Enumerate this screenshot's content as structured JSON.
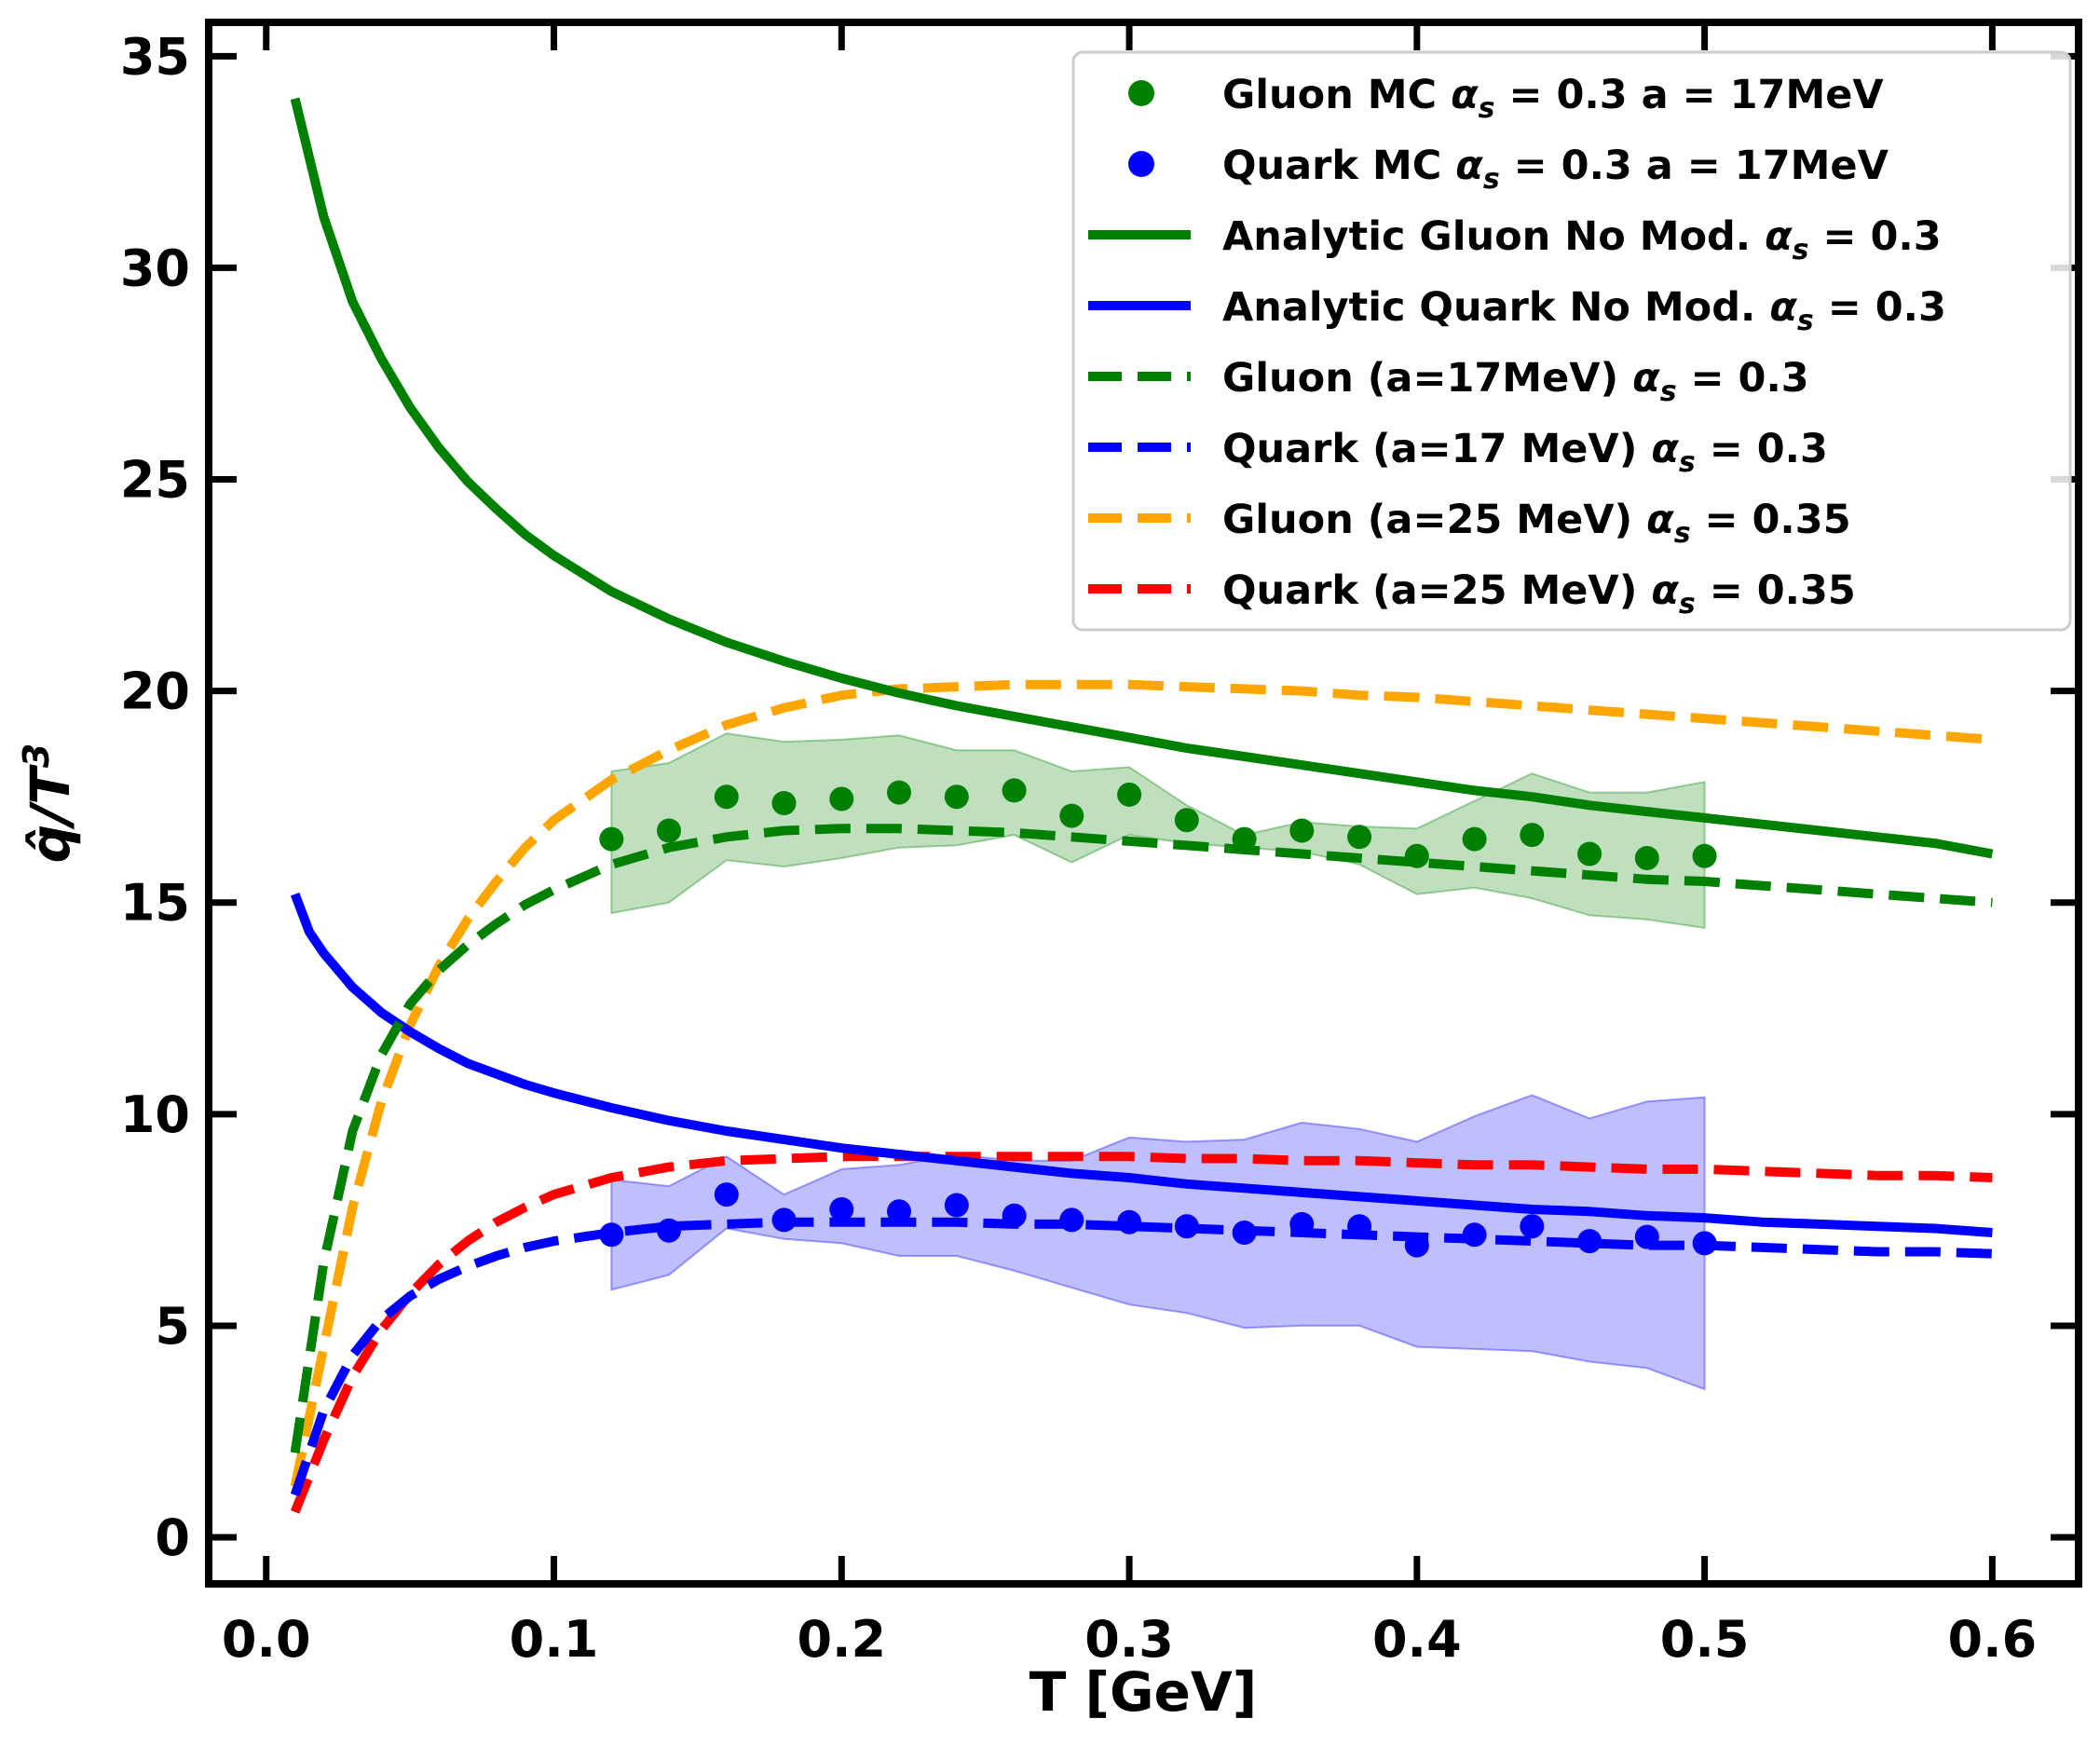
{
  "chart_data": {
    "type": "line",
    "title": "",
    "xlabel": "T [GeV]",
    "ylabel": "q̂/T³",
    "xlim": [
      -0.02,
      0.63
    ],
    "ylim": [
      -1.1,
      35.8
    ],
    "xticks": [
      0.0,
      0.1,
      0.2,
      0.3,
      0.4,
      0.5,
      0.6
    ],
    "xtick_labels": [
      "0.0",
      "0.1",
      "0.2",
      "0.3",
      "0.4",
      "0.5",
      "0.6"
    ],
    "yticks": [
      0,
      5,
      10,
      15,
      20,
      25,
      30,
      35
    ],
    "ytick_labels": [
      "0",
      "5",
      "10",
      "15",
      "20",
      "25",
      "30",
      "35"
    ],
    "legend_position": "top-right",
    "series": [
      {
        "name": "Gluon MC αs = 0.3 a = 17MeV",
        "legend": {
          "pre": "Gluon MC ",
          "sym": "α",
          "sub": "s",
          "post": " = 0.3 a = 17MeV"
        },
        "kind": "scatter",
        "color": "#008000",
        "x": [
          0.12,
          0.14,
          0.16,
          0.18,
          0.2,
          0.22,
          0.24,
          0.26,
          0.28,
          0.3,
          0.32,
          0.34,
          0.36,
          0.38,
          0.4,
          0.42,
          0.44,
          0.46,
          0.48,
          0.5
        ],
        "y": [
          16.5,
          16.7,
          17.5,
          17.35,
          17.45,
          17.6,
          17.5,
          17.65,
          17.05,
          17.55,
          16.95,
          16.5,
          16.7,
          16.55,
          16.1,
          16.5,
          16.6,
          16.15,
          16.05,
          16.1
        ]
      },
      {
        "name": "Quark MC αs = 0.3 a = 17MeV",
        "legend": {
          "pre": "Quark MC ",
          "sym": "α",
          "sub": "s",
          "post": " = 0.3 a = 17MeV"
        },
        "kind": "scatter",
        "color": "#0000ff",
        "x": [
          0.12,
          0.14,
          0.16,
          0.18,
          0.2,
          0.22,
          0.24,
          0.26,
          0.28,
          0.3,
          0.32,
          0.34,
          0.36,
          0.38,
          0.4,
          0.42,
          0.44,
          0.46,
          0.48,
          0.5
        ],
        "y": [
          7.15,
          7.25,
          8.1,
          7.5,
          7.75,
          7.7,
          7.85,
          7.6,
          7.5,
          7.45,
          7.35,
          7.2,
          7.4,
          7.35,
          6.9,
          7.15,
          7.35,
          7.0,
          7.1,
          6.95
        ]
      },
      {
        "name": "Analytic Gluon No Mod. αs = 0.3",
        "legend": {
          "pre": "Analytic Gluon No Mod. ",
          "sym": "α",
          "sub": "s",
          "post": " = 0.3"
        },
        "kind": "line",
        "dash": "solid",
        "color": "#008000",
        "x": [
          0.01,
          0.02,
          0.03,
          0.04,
          0.05,
          0.06,
          0.07,
          0.08,
          0.09,
          0.1,
          0.12,
          0.14,
          0.16,
          0.18,
          0.2,
          0.22,
          0.24,
          0.26,
          0.28,
          0.3,
          0.32,
          0.34,
          0.36,
          0.38,
          0.4,
          0.42,
          0.44,
          0.46,
          0.48,
          0.5,
          0.52,
          0.54,
          0.56,
          0.58,
          0.6
        ],
        "y": [
          34.0,
          31.2,
          29.2,
          27.85,
          26.7,
          25.75,
          24.95,
          24.3,
          23.7,
          23.2,
          22.35,
          21.7,
          21.15,
          20.7,
          20.3,
          19.95,
          19.65,
          19.4,
          19.15,
          18.9,
          18.65,
          18.45,
          18.25,
          18.05,
          17.85,
          17.65,
          17.5,
          17.3,
          17.15,
          17.0,
          16.85,
          16.7,
          16.55,
          16.4,
          16.15
        ]
      },
      {
        "name": "Analytic Quark No Mod. αs = 0.3",
        "legend": {
          "pre": "Analytic Quark No Mod. ",
          "sym": "α",
          "sub": "s",
          "post": " = 0.3"
        },
        "kind": "line",
        "dash": "solid",
        "color": "#0000ff",
        "x": [
          0.01,
          0.015,
          0.02,
          0.03,
          0.04,
          0.05,
          0.06,
          0.07,
          0.08,
          0.09,
          0.1,
          0.12,
          0.14,
          0.16,
          0.18,
          0.2,
          0.22,
          0.24,
          0.26,
          0.28,
          0.3,
          0.32,
          0.34,
          0.36,
          0.38,
          0.4,
          0.42,
          0.44,
          0.46,
          0.48,
          0.5,
          0.52,
          0.54,
          0.56,
          0.58,
          0.6
        ],
        "y": [
          15.2,
          14.3,
          13.8,
          13.0,
          12.4,
          11.95,
          11.55,
          11.2,
          10.95,
          10.7,
          10.5,
          10.15,
          9.85,
          9.6,
          9.4,
          9.2,
          9.05,
          8.9,
          8.75,
          8.6,
          8.5,
          8.35,
          8.25,
          8.15,
          8.05,
          7.95,
          7.85,
          7.75,
          7.7,
          7.6,
          7.55,
          7.45,
          7.4,
          7.35,
          7.3,
          7.2
        ]
      },
      {
        "name": "Gluon (a=17MeV) αs = 0.3",
        "legend": {
          "pre": "Gluon (a=17MeV) ",
          "sym": "α",
          "sub": "s",
          "post": " = 0.3"
        },
        "kind": "line",
        "dash": "dashed",
        "color": "#008000",
        "x": [
          0.01,
          0.02,
          0.03,
          0.04,
          0.05,
          0.06,
          0.07,
          0.08,
          0.09,
          0.1,
          0.12,
          0.14,
          0.16,
          0.18,
          0.2,
          0.22,
          0.24,
          0.26,
          0.28,
          0.3,
          0.32,
          0.34,
          0.36,
          0.38,
          0.4,
          0.42,
          0.44,
          0.46,
          0.48,
          0.5,
          0.52,
          0.54,
          0.56,
          0.58,
          0.6
        ],
        "y": [
          2.0,
          6.5,
          9.6,
          11.4,
          12.6,
          13.4,
          14.0,
          14.5,
          14.95,
          15.3,
          15.9,
          16.3,
          16.55,
          16.7,
          16.75,
          16.75,
          16.7,
          16.65,
          16.55,
          16.45,
          16.35,
          16.25,
          16.15,
          16.05,
          15.95,
          15.85,
          15.75,
          15.65,
          15.55,
          15.5,
          15.4,
          15.3,
          15.2,
          15.1,
          15.0
        ]
      },
      {
        "name": "Quark (a=17 MeV) αs = 0.3",
        "legend": {
          "pre": "Quark (a=17 MeV) ",
          "sym": "α",
          "sub": "s",
          "post": " = 0.3"
        },
        "kind": "line",
        "dash": "dashed",
        "color": "#0000ff",
        "x": [
          0.01,
          0.02,
          0.03,
          0.04,
          0.05,
          0.06,
          0.07,
          0.08,
          0.09,
          0.1,
          0.12,
          0.14,
          0.16,
          0.18,
          0.2,
          0.22,
          0.24,
          0.26,
          0.28,
          0.3,
          0.32,
          0.34,
          0.36,
          0.38,
          0.4,
          0.42,
          0.44,
          0.46,
          0.48,
          0.5,
          0.52,
          0.54,
          0.56,
          0.58,
          0.6
        ],
        "y": [
          1.0,
          3.0,
          4.3,
          5.15,
          5.7,
          6.1,
          6.4,
          6.65,
          6.85,
          7.0,
          7.2,
          7.35,
          7.4,
          7.45,
          7.45,
          7.45,
          7.45,
          7.4,
          7.4,
          7.35,
          7.3,
          7.25,
          7.2,
          7.15,
          7.1,
          7.05,
          7.0,
          6.95,
          6.9,
          6.9,
          6.85,
          6.8,
          6.75,
          6.75,
          6.7
        ]
      },
      {
        "name": "Gluon (a=25 MeV) αs = 0.35",
        "legend": {
          "pre": "Gluon (a=25 MeV) ",
          "sym": "α",
          "sub": "s",
          "post": " = 0.35"
        },
        "kind": "line",
        "dash": "dashed",
        "color": "#ffa500",
        "x": [
          0.01,
          0.02,
          0.03,
          0.04,
          0.05,
          0.06,
          0.07,
          0.08,
          0.09,
          0.1,
          0.12,
          0.14,
          0.16,
          0.18,
          0.2,
          0.22,
          0.24,
          0.26,
          0.28,
          0.3,
          0.32,
          0.34,
          0.36,
          0.38,
          0.4,
          0.42,
          0.44,
          0.46,
          0.48,
          0.5,
          0.52,
          0.54,
          0.56,
          0.58,
          0.6
        ],
        "y": [
          1.2,
          4.5,
          7.8,
          10.3,
          12.1,
          13.5,
          14.6,
          15.5,
          16.3,
          16.95,
          17.9,
          18.6,
          19.2,
          19.6,
          19.9,
          20.05,
          20.1,
          20.15,
          20.15,
          20.15,
          20.1,
          20.05,
          20.0,
          19.9,
          19.85,
          19.75,
          19.65,
          19.55,
          19.45,
          19.35,
          19.25,
          19.15,
          19.05,
          18.95,
          18.85
        ]
      },
      {
        "name": "Quark (a=25 MeV) αs = 0.35",
        "legend": {
          "pre": "Quark (a=25 MeV) ",
          "sym": "α",
          "sub": "s",
          "post": " = 0.35"
        },
        "kind": "line",
        "dash": "dashed",
        "color": "#ff0000",
        "x": [
          0.01,
          0.02,
          0.03,
          0.04,
          0.05,
          0.06,
          0.07,
          0.08,
          0.09,
          0.1,
          0.12,
          0.14,
          0.16,
          0.18,
          0.2,
          0.22,
          0.24,
          0.26,
          0.28,
          0.3,
          0.32,
          0.34,
          0.36,
          0.38,
          0.4,
          0.42,
          0.44,
          0.46,
          0.48,
          0.5,
          0.52,
          0.54,
          0.56,
          0.58,
          0.6
        ],
        "y": [
          0.6,
          2.3,
          3.8,
          4.9,
          5.75,
          6.45,
          7.0,
          7.45,
          7.8,
          8.1,
          8.5,
          8.75,
          8.9,
          8.95,
          9.0,
          9.0,
          9.0,
          9.0,
          9.0,
          9.0,
          8.95,
          8.95,
          8.9,
          8.9,
          8.85,
          8.8,
          8.8,
          8.75,
          8.7,
          8.7,
          8.65,
          8.6,
          8.55,
          8.55,
          8.5
        ]
      }
    ],
    "bands": [
      {
        "name": "gluon-mc-band",
        "color": "#008000",
        "opacity": 0.25,
        "x": [
          0.12,
          0.14,
          0.16,
          0.18,
          0.2,
          0.22,
          0.24,
          0.26,
          0.28,
          0.3,
          0.32,
          0.34,
          0.36,
          0.38,
          0.4,
          0.42,
          0.44,
          0.46,
          0.48,
          0.5
        ],
        "upper": [
          18.1,
          18.3,
          19.0,
          18.8,
          18.85,
          18.95,
          18.6,
          18.6,
          18.1,
          18.2,
          17.3,
          16.6,
          16.9,
          16.8,
          16.75,
          17.4,
          18.05,
          17.6,
          17.6,
          17.85
        ],
        "lower": [
          14.75,
          15.0,
          16.0,
          15.85,
          16.05,
          16.3,
          16.35,
          16.6,
          15.95,
          16.6,
          16.4,
          16.3,
          16.2,
          15.9,
          15.2,
          15.35,
          15.1,
          14.7,
          14.6,
          14.4
        ]
      },
      {
        "name": "quark-mc-band",
        "color": "#0000ff",
        "opacity": 0.25,
        "x": [
          0.12,
          0.14,
          0.16,
          0.18,
          0.2,
          0.22,
          0.24,
          0.26,
          0.28,
          0.3,
          0.32,
          0.34,
          0.36,
          0.38,
          0.4,
          0.42,
          0.44,
          0.46,
          0.48,
          0.5
        ],
        "upper": [
          8.45,
          8.3,
          9.0,
          8.1,
          8.7,
          8.8,
          9.05,
          8.9,
          8.9,
          9.45,
          9.35,
          9.4,
          9.8,
          9.65,
          9.35,
          9.95,
          10.45,
          9.9,
          10.3,
          10.4
        ],
        "lower": [
          5.85,
          6.2,
          7.3,
          7.05,
          6.95,
          6.65,
          6.65,
          6.3,
          5.9,
          5.5,
          5.3,
          4.95,
          5.0,
          5.0,
          4.5,
          4.45,
          4.4,
          4.15,
          4.0,
          3.5
        ]
      }
    ]
  }
}
